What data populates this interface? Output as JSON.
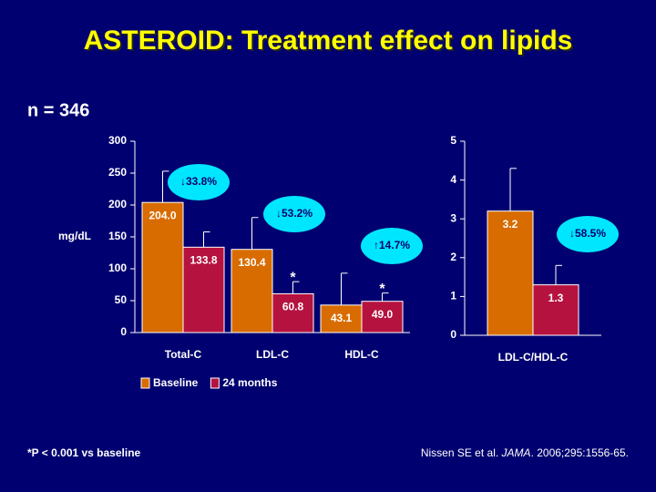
{
  "title": "ASTEROID: Treatment effect on lipids",
  "subtitle": "n = 346",
  "footnote": "*P < 0.001 vs baseline",
  "citation": {
    "authors": "Nissen SE et al. ",
    "journal": "JAMA",
    "details": ". 2006;295:1556-65."
  },
  "chart_data": [
    {
      "type": "bar",
      "ylabel": "mg/dL",
      "categories": [
        "Total-C",
        "LDL-C",
        "HDL-C"
      ],
      "series": [
        {
          "name": "Baseline",
          "color": "#d86c00",
          "values": [
            204.0,
            130.4,
            43.1
          ],
          "value_labels": [
            "204.0",
            "130.4",
            "43.1"
          ],
          "errors": [
            49,
            50,
            50
          ]
        },
        {
          "name": "24 months",
          "color": "#b5123f",
          "values": [
            133.8,
            60.8,
            49.0
          ],
          "value_labels": [
            "133.8",
            "60.8",
            "49.0"
          ],
          "errors": [
            24,
            19,
            13
          ],
          "flags": [
            null,
            "*",
            "*"
          ]
        }
      ],
      "annotations": [
        "↓33.8%",
        "↓53.2%",
        "↑14.7%"
      ],
      "ylim": [
        0,
        300
      ],
      "yticks": [
        0,
        50,
        100,
        150,
        200,
        250,
        300
      ],
      "legend": "bottom"
    },
    {
      "type": "bar",
      "categories": [
        "LDL-C/HDL-C"
      ],
      "series": [
        {
          "color": "#d86c00",
          "values": [
            3.2
          ],
          "errors": [
            1.1
          ]
        },
        {
          "color": "#b5123f",
          "values": [
            1.3
          ],
          "errors": [
            0.5
          ]
        }
      ],
      "annotations": [
        "↓58.5%"
      ],
      "ylim": [
        0,
        5
      ],
      "yticks": [
        0,
        1,
        2,
        3,
        4,
        5
      ],
      "legend": "none"
    }
  ]
}
